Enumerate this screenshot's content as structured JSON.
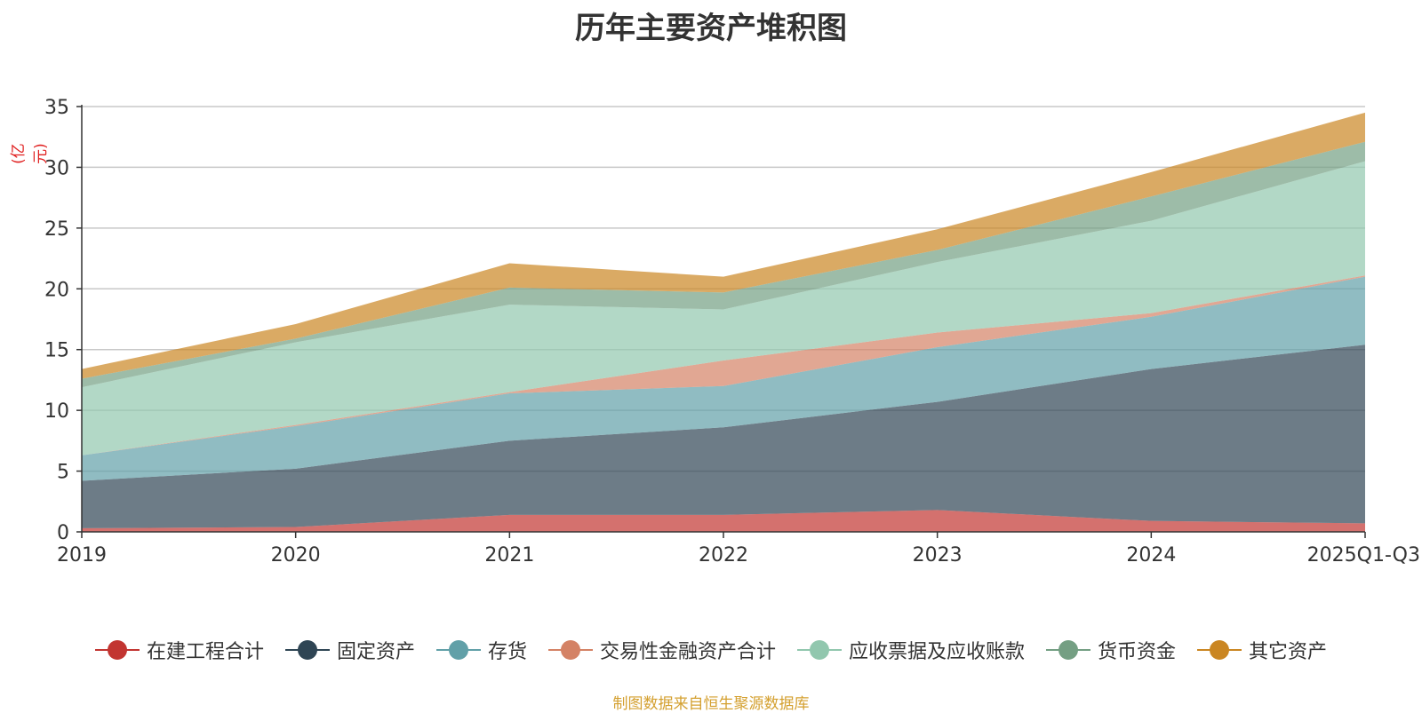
{
  "chart_data": {
    "type": "area",
    "stacked": true,
    "title": "历年主要资产堆积图",
    "unit_label": "(亿元)",
    "categories": [
      "2019",
      "2020",
      "2021",
      "2022",
      "2023",
      "2024",
      "2025Q1-Q3"
    ],
    "ylim": [
      0,
      35
    ],
    "yticks": [
      0,
      5,
      10,
      15,
      20,
      25,
      30,
      35
    ],
    "grid": true,
    "legend_position": "bottom",
    "series": [
      {
        "name": "在建工程合计",
        "color": "#c23531",
        "values": [
          0.3,
          0.4,
          1.4,
          1.4,
          1.8,
          0.9,
          0.7
        ]
      },
      {
        "name": "固定资产",
        "color": "#2f4554",
        "values": [
          3.9,
          4.8,
          6.1,
          7.2,
          8.9,
          12.5,
          14.7
        ]
      },
      {
        "name": "存货",
        "color": "#61a0a8",
        "values": [
          2.1,
          3.5,
          3.9,
          3.4,
          4.5,
          4.3,
          5.6
        ]
      },
      {
        "name": "交易性金融资产合计",
        "color": "#d48265",
        "values": [
          0.0,
          0.1,
          0.1,
          2.1,
          1.2,
          0.3,
          0.1
        ]
      },
      {
        "name": "应收票据及应收账款",
        "color": "#91c7ae",
        "values": [
          5.6,
          6.8,
          7.2,
          4.2,
          5.8,
          7.6,
          9.4
        ]
      },
      {
        "name": "货币资金",
        "color": "#749f83",
        "values": [
          0.7,
          0.3,
          1.4,
          1.4,
          1.0,
          2.0,
          1.6
        ]
      },
      {
        "name": "其它资产",
        "color": "#ca8622",
        "values": [
          0.8,
          1.2,
          2.0,
          1.3,
          1.7,
          2.0,
          2.4
        ]
      }
    ]
  },
  "footer": {
    "source": "制图数据来自恒生聚源数据库"
  }
}
